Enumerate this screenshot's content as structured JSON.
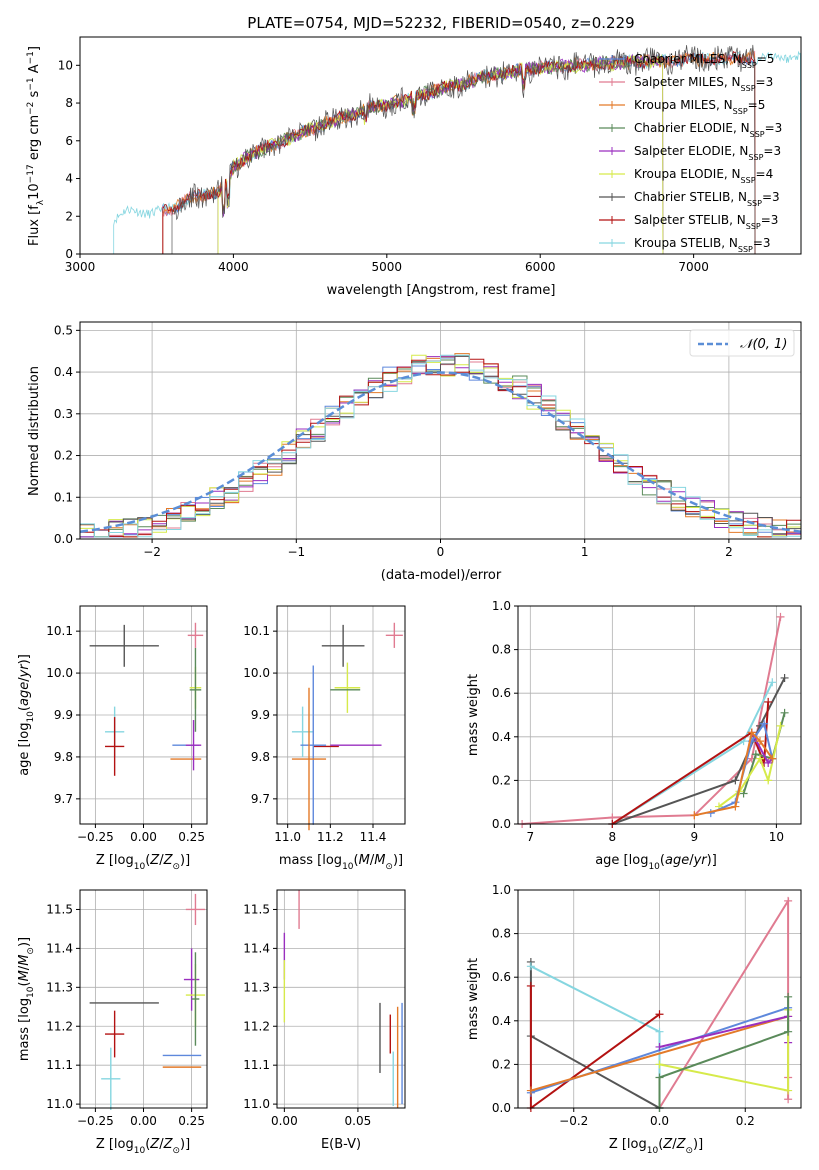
{
  "colors": {
    "chabrier_miles": "#5e88dc",
    "salpeter_miles": "#e07b91",
    "kroupa_miles": "#e37a29",
    "chabrier_elodie": "#5a8a5a",
    "salpeter_elodie": "#9a2fbf",
    "kroupa_elodie": "#d6ea4a",
    "chabrier_stelib": "#555555",
    "salpeter_stelib": "#b31212",
    "kroupa_stelib": "#86d6e0",
    "normal_curve": "#5b8ed6"
  },
  "chart_data": [
    {
      "id": "spectrum",
      "type": "line",
      "title": "PLATE=0754, MJD=52232, FIBERID=0540, z=0.229",
      "xlabel": "wavelength [Angstrom, rest frame]",
      "ylabel": "Flux [f_λ10^-17 erg cm^-2 s^-1 A^-1]",
      "xlim": [
        3000,
        7700
      ],
      "ylim": [
        0,
        11.5
      ],
      "xticks": [
        3000,
        4000,
        5000,
        6000,
        7000
      ],
      "yticks": [
        0,
        2,
        4,
        6,
        8,
        10
      ],
      "grid": false,
      "legend_position": "top-right",
      "legend": [
        {
          "key": "chabrier_miles",
          "label": "Chabrier MILES, N",
          "sub": "SSP",
          "tail": "=5"
        },
        {
          "key": "salpeter_miles",
          "label": "Salpeter MILES, N",
          "sub": "SSP",
          "tail": "=3"
        },
        {
          "key": "kroupa_miles",
          "label": "Kroupa MILES, N",
          "sub": "SSP",
          "tail": "=5"
        },
        {
          "key": "chabrier_elodie",
          "label": "Chabrier ELODIE, N",
          "sub": "SSP",
          "tail": "=3"
        },
        {
          "key": "salpeter_elodie",
          "label": "Salpeter ELODIE, N",
          "sub": "SSP",
          "tail": "=3"
        },
        {
          "key": "kroupa_elodie",
          "label": "Kroupa ELODIE, N",
          "sub": "SSP",
          "tail": "=4"
        },
        {
          "key": "chabrier_stelib",
          "label": "Chabrier STELIB, N",
          "sub": "SSP",
          "tail": "=3"
        },
        {
          "key": "salpeter_stelib",
          "label": "Salpeter STELIB, N",
          "sub": "SSP",
          "tail": "=3"
        },
        {
          "key": "kroupa_stelib",
          "label": "Kroupa STELIB, N",
          "sub": "SSP",
          "tail": "=3"
        }
      ],
      "continuum": {
        "x": [
          3220,
          3300,
          3400,
          3500,
          3600,
          3700,
          3800,
          3900,
          3950,
          4000,
          4100,
          4200,
          4300,
          4400,
          4500,
          4600,
          4700,
          4800,
          4900,
          5000,
          5100,
          5200,
          5300,
          5400,
          5500,
          5600,
          5700,
          5800,
          5900,
          6000,
          6100,
          6200,
          6300,
          6400,
          6500,
          6600,
          6700,
          6800,
          6900,
          7000,
          7100,
          7200,
          7300,
          7400,
          7500,
          7600,
          7700
        ],
        "y": [
          1.9,
          2.2,
          2.3,
          2.2,
          2.4,
          2.9,
          3.1,
          3.3,
          3.7,
          4.6,
          5.2,
          5.6,
          5.9,
          6.3,
          6.6,
          6.9,
          7.2,
          7.4,
          7.8,
          7.9,
          8.1,
          8.4,
          8.6,
          8.9,
          9.0,
          9.3,
          9.5,
          9.6,
          9.8,
          9.9,
          9.9,
          10.0,
          10.0,
          10.1,
          10.1,
          10.2,
          10.2,
          10.2,
          10.3,
          10.3,
          10.4,
          10.3,
          10.4,
          10.4,
          10.4,
          10.5,
          10.5
        ]
      },
      "series_starts": {
        "kroupa_stelib": 3220,
        "chabrier_miles": 3540,
        "salpeter_miles": 3540,
        "kroupa_miles": 3540,
        "salpeter_stelib": 3540,
        "chabrier_stelib": 3600,
        "chabrier_elodie": 3900,
        "salpeter_elodie": 3900,
        "kroupa_elodie": 3900
      },
      "series_ends": {
        "chabrier_miles": 7400,
        "salpeter_miles": 7400,
        "kroupa_miles": 7400,
        "salpeter_stelib": 7400,
        "chabrier_stelib": 7400,
        "kroupa_stelib": 7700,
        "chabrier_elodie": 6800,
        "salpeter_elodie": 6800,
        "kroupa_elodie": 6800
      }
    },
    {
      "id": "residuals",
      "type": "line",
      "xlabel": "(data-model)/error",
      "ylabel": "Normed distribution",
      "xlim": [
        -2.5,
        2.5
      ],
      "ylim": [
        0,
        0.52
      ],
      "xticks": [
        -2,
        -1,
        0,
        1,
        2
      ],
      "yticks": [
        0.0,
        0.1,
        0.2,
        0.3,
        0.4,
        0.5
      ],
      "grid": true,
      "legend_position": "top-right",
      "normal_label": "𝒩(0, 1)",
      "bin_width": 0.1,
      "bin_start": -2.5
    },
    {
      "id": "age_vs_Z",
      "type": "scatter",
      "xlabel": "Z [log10(Z/Z☉)]",
      "ylabel": "age [log10(age/yr)]",
      "xlim": [
        -0.33,
        0.33
      ],
      "ylim": [
        9.64,
        10.16
      ],
      "xticks": [
        -0.25,
        0.0,
        0.25
      ],
      "yticks": [
        9.7,
        9.8,
        9.9,
        10.0,
        10.1
      ],
      "grid": true,
      "points": [
        {
          "key": "chabrier_stelib",
          "x": -0.1,
          "xerr": 0.18,
          "y": 10.065,
          "yerr": 0.05
        },
        {
          "key": "kroupa_stelib",
          "x": -0.15,
          "xerr": 0.05,
          "y": 9.86,
          "yerr": 0.06
        },
        {
          "key": "salpeter_stelib",
          "x": -0.15,
          "xerr": 0.05,
          "y": 9.825,
          "yerr": 0.07
        },
        {
          "key": "chabrier_miles",
          "x": 0.22,
          "xerr": 0.07,
          "y": 9.828,
          "yerr": 0.0
        },
        {
          "key": "kroupa_miles",
          "x": 0.22,
          "xerr": 0.08,
          "y": 9.795,
          "yerr": 0.0
        },
        {
          "key": "salpeter_elodie",
          "x": 0.26,
          "xerr": 0.04,
          "y": 9.828,
          "yerr": 0.06
        },
        {
          "key": "kroupa_elodie",
          "x": 0.27,
          "xerr": 0.03,
          "y": 9.965,
          "yerr": 0.05
        },
        {
          "key": "chabrier_elodie",
          "x": 0.27,
          "xerr": 0.03,
          "y": 9.96,
          "yerr": 0.1
        },
        {
          "key": "salpeter_miles",
          "x": 0.27,
          "xerr": 0.04,
          "y": 10.09,
          "yerr": 0.03
        }
      ]
    },
    {
      "id": "age_vs_mass",
      "type": "scatter",
      "xlabel": "mass [log10(M/M☉)]",
      "xlim": [
        10.95,
        11.55
      ],
      "ylim": [
        9.64,
        10.16
      ],
      "xticks": [
        11.0,
        11.2,
        11.4
      ],
      "yticks": [
        9.7,
        9.8,
        9.9,
        10.0,
        10.1
      ],
      "grid": true,
      "points": [
        {
          "key": "chabrier_stelib",
          "x": 11.26,
          "xerr": 0.1,
          "y": 10.065,
          "yerr": 0.05
        },
        {
          "key": "kroupa_stelib",
          "x": 11.07,
          "xerr": 0.05,
          "y": 9.86,
          "yerr": 0.06
        },
        {
          "key": "salpeter_stelib",
          "x": 11.18,
          "xerr": 0.06,
          "y": 9.825,
          "yerr": 0.0
        },
        {
          "key": "chabrier_miles",
          "x": 11.12,
          "xerr": 0.06,
          "y": 9.828,
          "yerr": 0.19
        },
        {
          "key": "kroupa_miles",
          "x": 11.1,
          "xerr": 0.08,
          "y": 9.795,
          "yerr": 0.17
        },
        {
          "key": "salpeter_elodie",
          "x": 11.32,
          "xerr": 0.12,
          "y": 9.828,
          "yerr": 0.0
        },
        {
          "key": "kroupa_elodie",
          "x": 11.28,
          "xerr": 0.06,
          "y": 9.965,
          "yerr": 0.06
        },
        {
          "key": "chabrier_elodie",
          "x": 11.27,
          "xerr": 0.07,
          "y": 9.96,
          "yerr": 0.0
        },
        {
          "key": "salpeter_miles",
          "x": 11.5,
          "xerr": 0.04,
          "y": 10.09,
          "yerr": 0.03
        }
      ]
    },
    {
      "id": "weight_vs_age",
      "type": "line",
      "xlabel": "age [log10(age/yr)]",
      "ylabel": "mass weight",
      "xlim": [
        6.85,
        10.3
      ],
      "ylim": [
        0,
        1.0
      ],
      "xticks": [
        7,
        8,
        9,
        10
      ],
      "yticks": [
        0.0,
        0.2,
        0.4,
        0.6,
        0.8,
        1.0
      ],
      "grid": true,
      "series": [
        {
          "key": "salpeter_miles",
          "x": [
            6.9,
            8.0,
            9.0,
            9.7,
            10.05
          ],
          "y": [
            0.0,
            0.03,
            0.04,
            0.3,
            0.95
          ]
        },
        {
          "key": "chabrier_stelib",
          "x": [
            8.0,
            9.5,
            9.8,
            10.1
          ],
          "y": [
            0.0,
            0.2,
            0.45,
            0.67
          ]
        },
        {
          "key": "kroupa_stelib",
          "x": [
            8.0,
            9.6,
            9.95
          ],
          "y": [
            0.0,
            0.38,
            0.65
          ]
        },
        {
          "key": "salpeter_stelib",
          "x": [
            8.0,
            9.7,
            9.85,
            9.9
          ],
          "y": [
            0.0,
            0.42,
            0.28,
            0.56
          ]
        },
        {
          "key": "chabrier_elodie",
          "x": [
            9.6,
            9.75,
            9.95,
            10.1
          ],
          "y": [
            0.14,
            0.32,
            0.3,
            0.51
          ]
        },
        {
          "key": "kroupa_elodie",
          "x": [
            9.3,
            9.55,
            9.8,
            9.9,
            10.05
          ],
          "y": [
            0.08,
            0.15,
            0.3,
            0.2,
            0.45
          ]
        },
        {
          "key": "salpeter_elodie",
          "x": [
            9.7,
            9.9,
            9.95
          ],
          "y": [
            0.42,
            0.28,
            0.3
          ]
        },
        {
          "key": "chabrier_miles",
          "x": [
            9.2,
            9.5,
            9.7,
            9.85,
            9.95
          ],
          "y": [
            0.05,
            0.1,
            0.38,
            0.46,
            0.3
          ]
        },
        {
          "key": "kroupa_miles",
          "x": [
            9.0,
            9.5,
            9.7,
            9.8,
            9.95
          ],
          "y": [
            0.04,
            0.08,
            0.42,
            0.38,
            0.3
          ]
        }
      ]
    },
    {
      "id": "mass_vs_Z",
      "type": "scatter",
      "xlabel": "Z [log10(Z/Z☉)]",
      "ylabel": "mass [log10(M/M☉)]",
      "xlim": [
        -0.33,
        0.33
      ],
      "ylim": [
        10.99,
        11.55
      ],
      "xticks": [
        -0.25,
        0.0,
        0.25
      ],
      "yticks": [
        11.0,
        11.1,
        11.2,
        11.3,
        11.4,
        11.5
      ],
      "grid": true,
      "points": [
        {
          "key": "chabrier_stelib",
          "x": -0.1,
          "xerr": 0.18,
          "y": 11.26,
          "yerr": 0.0
        },
        {
          "key": "salpeter_stelib",
          "x": -0.15,
          "xerr": 0.05,
          "y": 11.18,
          "yerr": 0.06
        },
        {
          "key": "kroupa_stelib",
          "x": -0.17,
          "xerr": 0.05,
          "y": 11.065,
          "yerr": 0.08
        },
        {
          "key": "chabrier_miles",
          "x": 0.2,
          "xerr": 0.1,
          "y": 11.125,
          "yerr": 0.0
        },
        {
          "key": "kroupa_miles",
          "x": 0.2,
          "xerr": 0.1,
          "y": 11.095,
          "yerr": 0.0
        },
        {
          "key": "salpeter_elodie",
          "x": 0.25,
          "xerr": 0.04,
          "y": 11.32,
          "yerr": 0.08
        },
        {
          "key": "kroupa_elodie",
          "x": 0.27,
          "xerr": 0.05,
          "y": 11.28,
          "yerr": 0.08
        },
        {
          "key": "chabrier_elodie",
          "x": 0.27,
          "xerr": 0.02,
          "y": 11.27,
          "yerr": 0.12
        },
        {
          "key": "salpeter_miles",
          "x": 0.27,
          "xerr": 0.05,
          "y": 11.5,
          "yerr": 0.04
        }
      ]
    },
    {
      "id": "mass_vs_ebv",
      "type": "scatter",
      "xlabel": "E(B-V)",
      "xlim": [
        -0.005,
        0.082
      ],
      "ylim": [
        10.99,
        11.55
      ],
      "xticks": [
        0.0,
        0.05
      ],
      "yticks": [
        11.0,
        11.1,
        11.2,
        11.3,
        11.4,
        11.5
      ],
      "grid": true,
      "points": [
        {
          "key": "salpeter_miles",
          "x": 0.01,
          "xerr": 0.0,
          "y": 11.5,
          "yerr": 0.05
        },
        {
          "key": "salpeter_elodie",
          "x": 0.0,
          "xerr": 0.0,
          "y": 11.38,
          "yerr": 0.06
        },
        {
          "key": "kroupa_elodie",
          "x": 0.0,
          "xerr": 0.0,
          "y": 11.29,
          "yerr": 0.08
        },
        {
          "key": "chabrier_stelib",
          "x": 0.065,
          "xerr": 0.0,
          "y": 11.17,
          "yerr": 0.09
        },
        {
          "key": "salpeter_stelib",
          "x": 0.072,
          "xerr": 0.0,
          "y": 11.18,
          "yerr": 0.05
        },
        {
          "key": "kroupa_stelib",
          "x": 0.074,
          "xerr": 0.0,
          "y": 11.065,
          "yerr": 0.07
        },
        {
          "key": "kroupa_miles",
          "x": 0.077,
          "xerr": 0.0,
          "y": 11.12,
          "yerr": 0.13
        },
        {
          "key": "chabrier_miles",
          "x": 0.08,
          "xerr": 0.0,
          "y": 11.13,
          "yerr": 0.13
        }
      ]
    },
    {
      "id": "weight_vs_Z",
      "type": "line",
      "xlabel": "Z [log10(Z/Z☉)]",
      "ylabel": "mass weight",
      "xlim": [
        -0.33,
        0.33
      ],
      "ylim": [
        0,
        1.0
      ],
      "xticks": [
        -0.2,
        0.0,
        0.2
      ],
      "yticks": [
        0.0,
        0.2,
        0.4,
        0.6,
        0.8,
        1.0
      ],
      "grid": true,
      "series": [
        {
          "key": "salpeter_miles",
          "x": [
            0.0,
            0.3,
            0.3,
            0.3
          ],
          "y": [
            0.0,
            0.95,
            0.14,
            0.04
          ]
        },
        {
          "key": "chabrier_stelib",
          "x": [
            -0.3,
            -0.3,
            0.0
          ],
          "y": [
            0.67,
            0.33,
            0.0
          ]
        },
        {
          "key": "kroupa_stelib",
          "x": [
            -0.3,
            0.0,
            0.0
          ],
          "y": [
            0.65,
            0.35,
            0.0
          ]
        },
        {
          "key": "salpeter_stelib",
          "x": [
            -0.3,
            -0.3,
            0.0
          ],
          "y": [
            0.56,
            0.0,
            0.43
          ]
        },
        {
          "key": "chabrier_miles",
          "x": [
            -0.3,
            0.3
          ],
          "y": [
            0.07,
            0.46
          ]
        },
        {
          "key": "kroupa_miles",
          "x": [
            -0.3,
            0.3
          ],
          "y": [
            0.08,
            0.42
          ]
        },
        {
          "key": "salpeter_elodie",
          "x": [
            0.0,
            0.3,
            0.3
          ],
          "y": [
            0.28,
            0.42,
            0.3
          ]
        },
        {
          "key": "kroupa_elodie",
          "x": [
            0.0,
            0.3,
            0.3
          ],
          "y": [
            0.2,
            0.08,
            0.45
          ]
        },
        {
          "key": "chabrier_elodie",
          "x": [
            0.0,
            0.0,
            0.3,
            0.3
          ],
          "y": [
            0.0,
            0.14,
            0.35,
            0.51
          ]
        }
      ]
    }
  ]
}
